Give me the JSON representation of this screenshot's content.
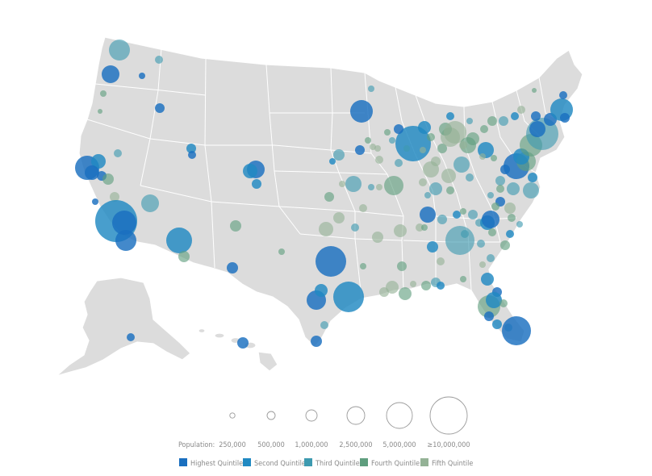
{
  "legend": {
    "population_label": "Population:",
    "sizes": [
      {
        "label": "250,000",
        "value": 250000
      },
      {
        "label": "500,000",
        "value": 500000
      },
      {
        "label": "1,000,000",
        "value": 1000000
      },
      {
        "label": "2,500,000",
        "value": 2500000
      },
      {
        "label": "5,000,000",
        "value": 5000000
      },
      {
        "label": "≥10,000,000",
        "value": 10000000
      }
    ],
    "quintiles": [
      {
        "label": "Highest Quintile",
        "color": "#1a6fbf"
      },
      {
        "label": "Second Quintile",
        "color": "#2089c2"
      },
      {
        "label": "Third Quintile",
        "color": "#3d9ab0"
      },
      {
        "label": "Fourth Quintile",
        "color": "#5f9e7e"
      },
      {
        "label": "Fifth Quintile",
        "color": "#94b296"
      }
    ]
  },
  "colors": {
    "land": "#dcdcdc",
    "border": "#ffffff",
    "text": "#8a8a8a"
  }
}
